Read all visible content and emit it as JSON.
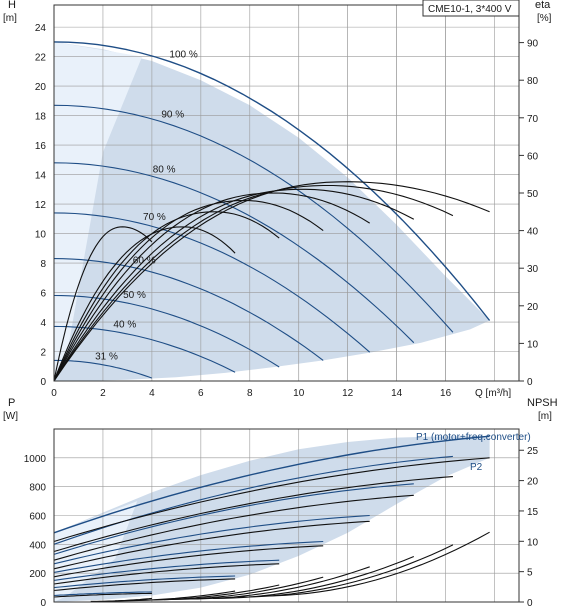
{
  "chart_data": [
    {
      "type": "line",
      "title": "CME10-1, 3*400 V",
      "y_unit_label": "H",
      "y_unit": "[m]",
      "y2_unit_label": "eta",
      "y2_unit": "[%]",
      "x_unit_label": "Q [m³/h]",
      "xlim": [
        0,
        19
      ],
      "ylim": [
        0,
        25.5
      ],
      "y2lim": [
        0,
        100
      ],
      "x_ticks": [
        "0",
        "2",
        "4",
        "6",
        "8",
        "10",
        "12",
        "14",
        "16"
      ],
      "y_ticks": [
        "0",
        "2",
        "4",
        "6",
        "8",
        "10",
        "12",
        "14",
        "16",
        "18",
        "20",
        "22",
        "24"
      ],
      "y2_ticks": [
        "0",
        "10",
        "20",
        "30",
        "40",
        "50",
        "60",
        "70",
        "80",
        "90"
      ],
      "grid": true,
      "operating_area": {
        "polygon": [
          [
            0,
            23.0
          ],
          [
            2.0,
            22.5
          ],
          [
            4.0,
            21.7
          ],
          [
            6.0,
            20.4
          ],
          [
            8.0,
            18.7
          ],
          [
            10.0,
            16.5
          ],
          [
            12.0,
            13.8
          ],
          [
            14.0,
            10.6
          ],
          [
            16.0,
            7.1
          ],
          [
            17.8,
            4.1
          ],
          [
            17.8,
            4.1
          ],
          [
            17.0,
            3.5
          ],
          [
            15.0,
            2.6
          ],
          [
            13.0,
            1.95
          ],
          [
            11.0,
            1.4
          ],
          [
            9.0,
            0.95
          ],
          [
            7.0,
            0.55
          ],
          [
            5.0,
            0.25
          ],
          [
            3.0,
            0.08
          ],
          [
            1.0,
            0.0
          ],
          [
            0.0,
            0.0
          ]
        ]
      },
      "light_area": {
        "polygon": [
          [
            0,
            23.0
          ],
          [
            3.6,
            22.0
          ],
          [
            2.0,
            15.5
          ],
          [
            0.6,
            2.5
          ],
          [
            0.0,
            0.0
          ]
        ]
      },
      "speed_curves": [
        {
          "label": "100 %",
          "q_max": 17.8,
          "h0": 23.0,
          "h_end": 4.1
        },
        {
          "label": "90 %",
          "q_max": 16.3,
          "h0": 18.7,
          "h_end": 3.3
        },
        {
          "label": "80 %",
          "q_max": 14.7,
          "h0": 14.8,
          "h_end": 2.6
        },
        {
          "label": "70 %",
          "q_max": 12.9,
          "h0": 11.4,
          "h_end": 1.95
        },
        {
          "label": "60 %",
          "q_max": 11.0,
          "h0": 8.3,
          "h_end": 1.4
        },
        {
          "label": "50 %",
          "q_max": 9.2,
          "h0": 5.8,
          "h_end": 0.95
        },
        {
          "label": "40 %",
          "q_max": 7.4,
          "h0": 3.7,
          "h_end": 0.6
        },
        {
          "label": "31 %",
          "q_max": 4.0,
          "h0": 1.4,
          "h_end": 0.2
        }
      ],
      "eta_curves": [
        {
          "q_max": 17.8,
          "peak_q": 12.0,
          "peak_eta": 53,
          "end_eta": 45
        },
        {
          "q_max": 16.3,
          "peak_q": 11.2,
          "peak_eta": 52,
          "end_eta": 44
        },
        {
          "q_max": 14.7,
          "peak_q": 10.2,
          "peak_eta": 51,
          "end_eta": 43
        },
        {
          "q_max": 12.9,
          "peak_q": 9.0,
          "peak_eta": 50,
          "end_eta": 42
        },
        {
          "q_max": 11.0,
          "peak_q": 7.8,
          "peak_eta": 48,
          "end_eta": 40
        },
        {
          "q_max": 9.2,
          "peak_q": 6.6,
          "peak_eta": 45,
          "end_eta": 38
        },
        {
          "q_max": 7.4,
          "peak_q": 5.3,
          "peak_eta": 41,
          "end_eta": 34
        },
        {
          "q_max": 4.0,
          "peak_q": 2.8,
          "peak_eta": 41,
          "end_eta": 37
        }
      ]
    },
    {
      "type": "line",
      "y_unit_label": "P",
      "y_unit": "[W]",
      "y2_unit_label": "NPSH",
      "y2_unit": "[m]",
      "xlim": [
        0,
        19
      ],
      "ylim": [
        0,
        1200
      ],
      "y2lim": [
        0,
        28.5
      ],
      "y_ticks": [
        "0",
        "200",
        "400",
        "600",
        "800",
        "1000"
      ],
      "y2_ticks": [
        "0",
        "5",
        "10",
        "15",
        "20",
        "25"
      ],
      "grid": true,
      "series_labels": [
        "P1 (motor+freq.converter)",
        "P2"
      ],
      "operating_area": {
        "polygon": [
          [
            0,
            480
          ],
          [
            2,
            620
          ],
          [
            4,
            760
          ],
          [
            6,
            880
          ],
          [
            8,
            980
          ],
          [
            10,
            1060
          ],
          [
            12,
            1110
          ],
          [
            14,
            1140
          ],
          [
            16,
            1150
          ],
          [
            17.8,
            1150
          ],
          [
            17.8,
            1000
          ],
          [
            16.0,
            870
          ],
          [
            14.0,
            680
          ],
          [
            12.0,
            480
          ],
          [
            10.0,
            320
          ],
          [
            8.0,
            190
          ],
          [
            6.0,
            100
          ],
          [
            4.0,
            45
          ],
          [
            2.0,
            15
          ],
          [
            0.0,
            0
          ]
        ]
      },
      "light_area": {
        "polygon": [
          [
            0,
            480
          ],
          [
            3.4,
            700
          ],
          [
            2.5,
            300
          ],
          [
            0.5,
            40
          ],
          [
            0.0,
            0
          ]
        ]
      },
      "p1_curves": [
        {
          "q_max": 17.8,
          "p0": 480,
          "p_end": 1150
        },
        {
          "q_max": 16.3,
          "p0": 400,
          "p_end": 1010
        },
        {
          "q_max": 14.7,
          "p0": 330,
          "p_end": 820
        },
        {
          "q_max": 12.9,
          "p0": 265,
          "p_end": 600
        },
        {
          "q_max": 11.0,
          "p0": 205,
          "p_end": 420
        },
        {
          "q_max": 9.2,
          "p0": 150,
          "p_end": 290
        },
        {
          "q_max": 7.4,
          "p0": 100,
          "p_end": 180
        },
        {
          "q_max": 4.0,
          "p0": 45,
          "p_end": 70
        }
      ],
      "p2_curves": [
        {
          "q_max": 17.8,
          "p0": 420,
          "p_end": 1000
        },
        {
          "q_max": 16.3,
          "p0": 350,
          "p_end": 870
        },
        {
          "q_max": 14.7,
          "p0": 290,
          "p_end": 740
        },
        {
          "q_max": 12.9,
          "p0": 230,
          "p_end": 560
        },
        {
          "q_max": 11.0,
          "p0": 175,
          "p_end": 390
        },
        {
          "q_max": 9.2,
          "p0": 125,
          "p_end": 265
        },
        {
          "q_max": 7.4,
          "p0": 80,
          "p_end": 160
        },
        {
          "q_max": 4.0,
          "p0": 35,
          "p_end": 60
        }
      ],
      "npsh_curves": [
        {
          "q_start": 8.5,
          "q_max": 17.8,
          "n_start": 1.0,
          "n_end": 11.5
        },
        {
          "q_start": 7.5,
          "q_max": 16.3,
          "n_start": 0.8,
          "n_end": 9.4
        },
        {
          "q_start": 6.5,
          "q_max": 14.7,
          "n_start": 0.6,
          "n_end": 7.5
        },
        {
          "q_start": 5.5,
          "q_max": 12.9,
          "n_start": 0.5,
          "n_end": 5.8
        },
        {
          "q_start": 4.5,
          "q_max": 11.0,
          "n_start": 0.4,
          "n_end": 4.1
        },
        {
          "q_start": 3.5,
          "q_max": 9.2,
          "n_start": 0.3,
          "n_end": 2.8
        },
        {
          "q_start": 2.5,
          "q_max": 7.4,
          "n_start": 0.2,
          "n_end": 1.8
        },
        {
          "q_start": 1.5,
          "q_max": 4.0,
          "n_start": 0.1,
          "n_end": 0.6
        }
      ]
    }
  ],
  "colors": {
    "area": "#cfdceb",
    "area_light": "#e9f1fa",
    "curve_blue": "#1f4e86",
    "curve_black": "#111111",
    "grid": "#9a9a9a"
  }
}
